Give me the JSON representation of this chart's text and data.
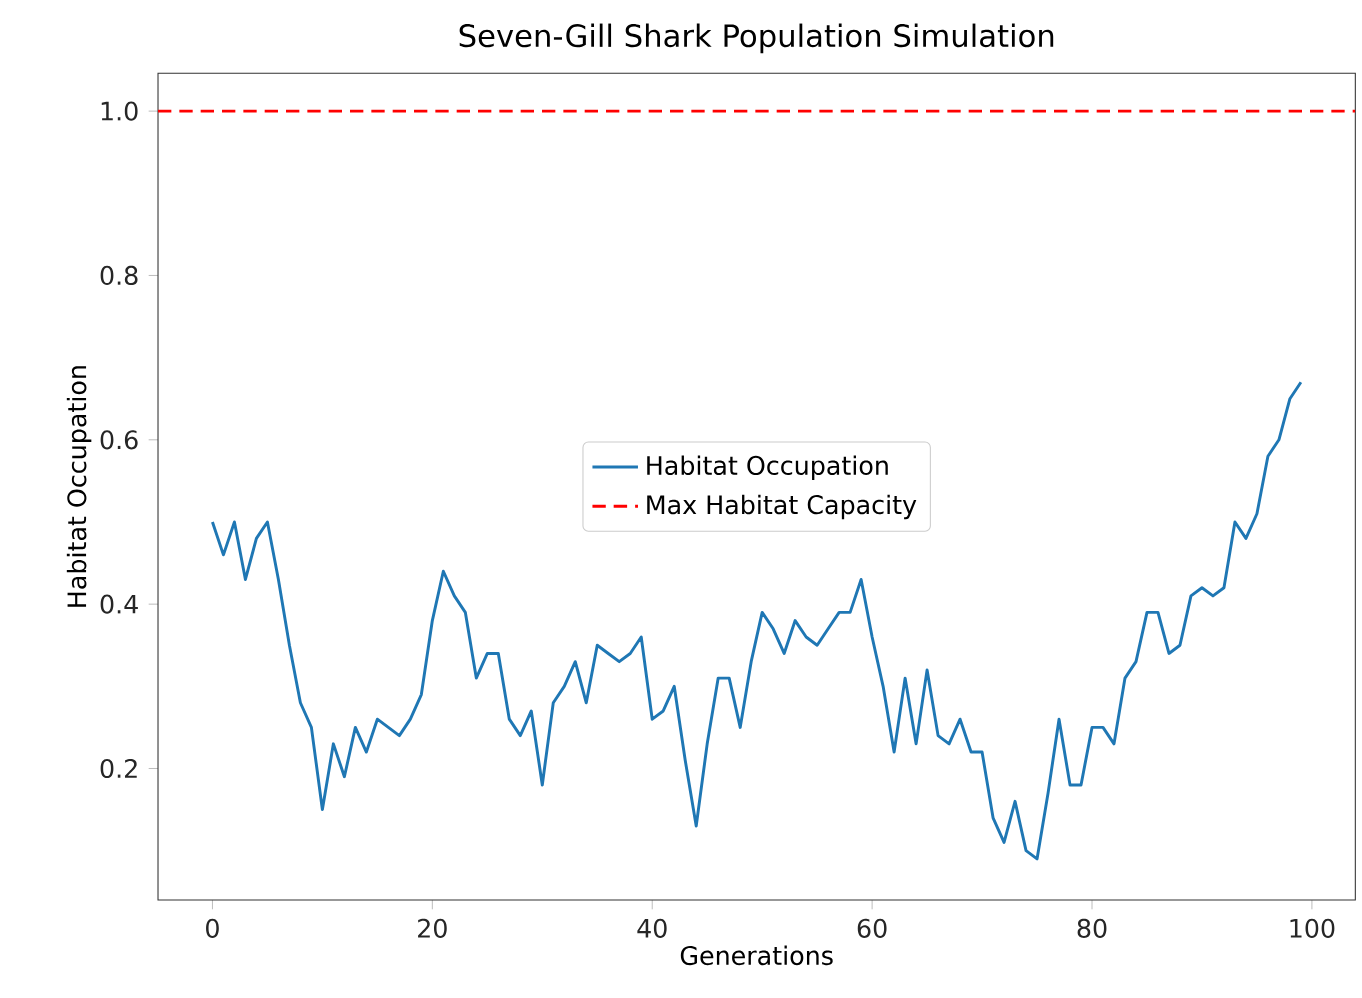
{
  "chart_data": {
    "type": "line",
    "title": "Seven-Gill Shark Population Simulation",
    "xlabel": "Generations",
    "ylabel": "Habitat Occupation",
    "x": [
      0,
      1,
      2,
      3,
      4,
      5,
      6,
      7,
      8,
      9,
      10,
      11,
      12,
      13,
      14,
      15,
      16,
      17,
      18,
      19,
      20,
      21,
      22,
      23,
      24,
      25,
      26,
      27,
      28,
      29,
      30,
      31,
      32,
      33,
      34,
      35,
      36,
      37,
      38,
      39,
      40,
      41,
      42,
      43,
      44,
      45,
      46,
      47,
      48,
      49,
      50,
      51,
      52,
      53,
      54,
      55,
      56,
      57,
      58,
      59,
      60,
      61,
      62,
      63,
      64,
      65,
      66,
      67,
      68,
      69,
      70,
      71,
      72,
      73,
      74,
      75,
      76,
      77,
      78,
      79,
      80,
      81,
      82,
      83,
      84,
      85,
      86,
      87,
      88,
      89,
      90,
      91,
      92,
      93,
      94,
      95,
      96,
      97,
      98,
      99
    ],
    "series": [
      {
        "name": "Habitat Occupation",
        "color": "#1f77b4",
        "values": [
          0.5,
          0.46,
          0.5,
          0.43,
          0.48,
          0.5,
          0.43,
          0.35,
          0.28,
          0.25,
          0.15,
          0.23,
          0.19,
          0.25,
          0.22,
          0.26,
          0.25,
          0.24,
          0.26,
          0.29,
          0.38,
          0.44,
          0.41,
          0.39,
          0.31,
          0.34,
          0.34,
          0.26,
          0.24,
          0.27,
          0.18,
          0.28,
          0.3,
          0.33,
          0.28,
          0.35,
          0.34,
          0.33,
          0.34,
          0.36,
          0.26,
          0.27,
          0.3,
          0.21,
          0.13,
          0.23,
          0.31,
          0.31,
          0.25,
          0.33,
          0.39,
          0.37,
          0.34,
          0.38,
          0.36,
          0.35,
          0.37,
          0.39,
          0.39,
          0.43,
          0.36,
          0.3,
          0.22,
          0.31,
          0.23,
          0.32,
          0.24,
          0.23,
          0.26,
          0.22,
          0.22,
          0.14,
          0.11,
          0.16,
          0.1,
          0.09,
          0.17,
          0.26,
          0.18,
          0.18,
          0.25,
          0.25,
          0.23,
          0.31,
          0.33,
          0.39,
          0.39,
          0.34,
          0.35,
          0.41,
          0.42,
          0.41,
          0.42,
          0.5,
          0.48,
          0.51,
          0.58,
          0.6,
          0.65,
          0.67
        ]
      }
    ],
    "ref_lines": [
      {
        "axis": "y",
        "value": 1.0,
        "label": "Max Habitat Capacity",
        "color": "#ff0000",
        "line_style": "dashed"
      }
    ],
    "xlim": [
      -4.95,
      103.95
    ],
    "ylim": [
      0.04,
      1.046
    ],
    "xticks": [
      0,
      20,
      40,
      60,
      80,
      100
    ],
    "yticks": [
      0.2,
      0.4,
      0.6,
      0.8,
      {
        "value": 1,
        "label": "1.0"
      }
    ],
    "legend": "center",
    "marker": "none",
    "line_style": "solid"
  }
}
